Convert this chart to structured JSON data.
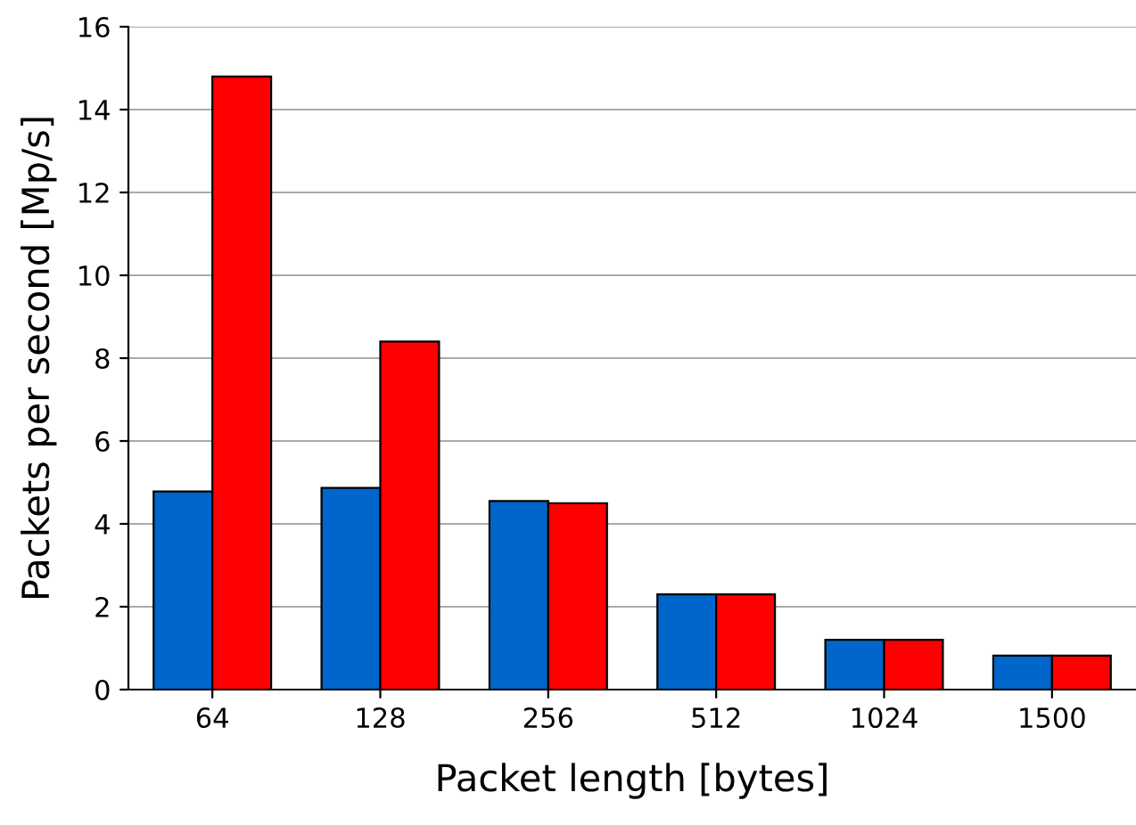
{
  "chart_data": {
    "type": "bar",
    "xlabel": "Packet length [bytes]",
    "ylabel": "Packets per second [Mp/s]",
    "categories": [
      "64",
      "128",
      "256",
      "512",
      "1024",
      "1500"
    ],
    "series": [
      {
        "color": "#0066cc",
        "values": [
          4.78,
          4.87,
          4.55,
          2.3,
          1.2,
          0.82
        ]
      },
      {
        "color": "#ff0000",
        "values": [
          14.8,
          8.4,
          4.5,
          2.3,
          1.2,
          0.82
        ]
      }
    ],
    "ylim": [
      0,
      16
    ],
    "yticks": [
      0,
      2,
      4,
      6,
      8,
      10,
      12,
      14,
      16
    ],
    "grid": "y"
  }
}
